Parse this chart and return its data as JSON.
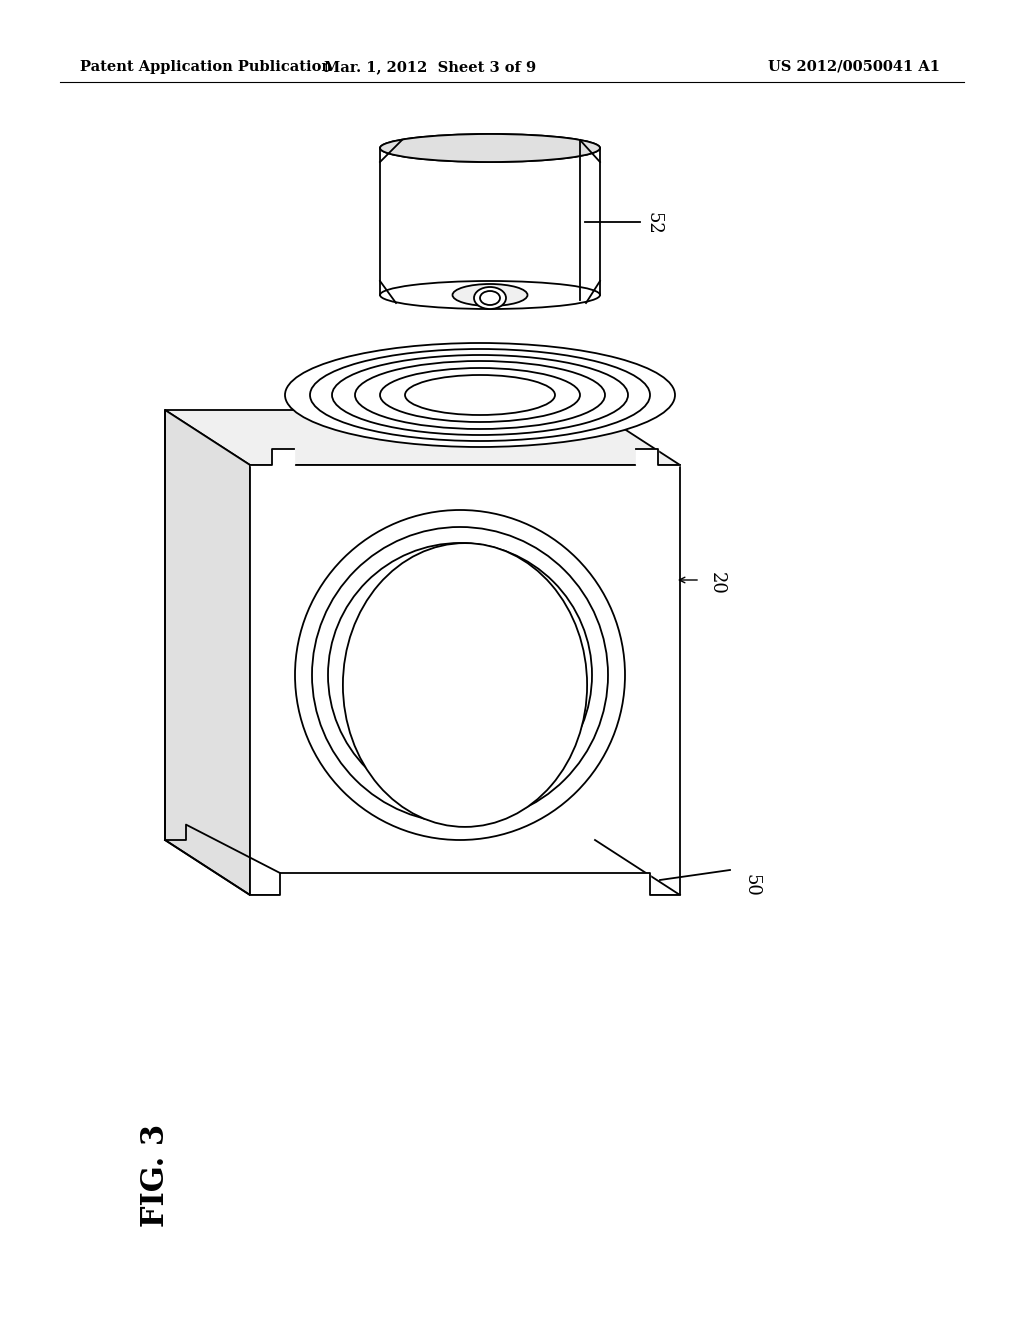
{
  "background_color": "#ffffff",
  "header_left": "Patent Application Publication",
  "header_center": "Mar. 1, 2012  Sheet 3 of 9",
  "header_right": "US 2012/0050041 A1",
  "fig_label": "FIG. 3",
  "label_52": "52",
  "label_20": "20",
  "label_50": "50",
  "line_color": "#000000",
  "lw": 1.3
}
